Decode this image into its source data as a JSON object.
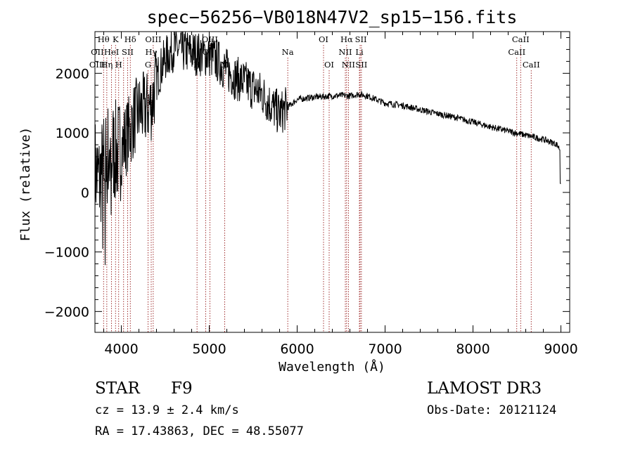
{
  "chart_data": {
    "type": "line",
    "title": "spec−56256−VB018N47V2_sp15−156.fits",
    "xlabel": "Wavelength (Å)",
    "ylabel": "Flux (relative)",
    "xlim": [
      3700,
      9100
    ],
    "ylim": [
      -2350,
      2700
    ],
    "xticks": [
      4000,
      5000,
      6000,
      7000,
      8000,
      9000
    ],
    "xtick_labels": [
      "4000",
      "5000",
      "6000",
      "7000",
      "8000",
      "9000"
    ],
    "yticks": [
      -2000,
      -1000,
      0,
      1000,
      2000
    ],
    "ytick_labels": [
      "−2000",
      "−1000",
      "0",
      "1000",
      "2000"
    ],
    "line_color": "#000000",
    "marker_color": "#8b0000",
    "spectrum_anchors": [
      [
        3700,
        400
      ],
      [
        3750,
        200
      ],
      [
        3800,
        500
      ],
      [
        3850,
        650
      ],
      [
        3900,
        700
      ],
      [
        3950,
        650
      ],
      [
        4000,
        750
      ],
      [
        4050,
        900
      ],
      [
        4100,
        1050
      ],
      [
        4150,
        1250
      ],
      [
        4200,
        1350
      ],
      [
        4300,
        1420
      ],
      [
        4350,
        1500
      ],
      [
        4400,
        1900
      ],
      [
        4500,
        2250
      ],
      [
        4600,
        2420
      ],
      [
        4700,
        2380
      ],
      [
        4800,
        2350
      ],
      [
        4900,
        2320
      ],
      [
        5000,
        2300
      ],
      [
        5100,
        2200
      ],
      [
        5200,
        2050
      ],
      [
        5300,
        1920
      ],
      [
        5400,
        1850
      ],
      [
        5500,
        1750
      ],
      [
        5600,
        1650
      ],
      [
        5700,
        1470
      ],
      [
        5800,
        1320
      ],
      [
        5850,
        1380
      ],
      [
        5900,
        1440
      ],
      [
        6000,
        1560
      ],
      [
        6100,
        1580
      ],
      [
        6200,
        1600
      ],
      [
        6300,
        1610
      ],
      [
        6400,
        1620
      ],
      [
        6500,
        1630
      ],
      [
        6600,
        1620
      ],
      [
        6700,
        1650
      ],
      [
        6800,
        1620
      ],
      [
        6900,
        1560
      ],
      [
        7000,
        1500
      ],
      [
        7200,
        1460
      ],
      [
        7400,
        1390
      ],
      [
        7600,
        1320
      ],
      [
        7800,
        1260
      ],
      [
        8000,
        1180
      ],
      [
        8200,
        1100
      ],
      [
        8400,
        1030
      ],
      [
        8600,
        960
      ],
      [
        8800,
        890
      ],
      [
        8950,
        810
      ],
      [
        9000,
        700
      ]
    ],
    "spectral_lines": [
      {
        "wave": 3798,
        "rows": [
          0
        ]
      },
      {
        "wave": 3835,
        "rows": [
          1,
          2
        ]
      },
      {
        "wave": 3889,
        "rows": [
          0,
          1,
          2
        ]
      },
      {
        "wave": 3934,
        "rows": [
          0
        ]
      },
      {
        "wave": 3970,
        "rows": [
          1,
          2
        ]
      },
      {
        "wave": 4026,
        "rows": [
          1
        ]
      },
      {
        "wave": 4072,
        "rows": [
          1
        ]
      },
      {
        "wave": 4102,
        "rows": [
          0
        ]
      },
      {
        "wave": 4304,
        "rows": [
          2
        ]
      },
      {
        "wave": 4340,
        "rows": [
          1
        ]
      },
      {
        "wave": 4363,
        "rows": [
          0
        ]
      },
      {
        "wave": 4861,
        "rows": [
          2
        ]
      },
      {
        "wave": 4959,
        "rows": [
          1
        ]
      },
      {
        "wave": 5007,
        "rows": [
          0
        ]
      },
      {
        "wave": 5176,
        "rows": [
          2
        ]
      },
      {
        "wave": 5893,
        "rows": [
          1
        ]
      },
      {
        "wave": 6300,
        "rows": [
          0
        ]
      },
      {
        "wave": 6364,
        "rows": [
          2
        ]
      },
      {
        "wave": 6548,
        "rows": [
          1,
          2
        ]
      },
      {
        "wave": 6563,
        "rows": [
          0
        ]
      },
      {
        "wave": 6583,
        "rows": [
          1,
          2
        ]
      },
      {
        "wave": 6708,
        "rows": [
          1
        ]
      },
      {
        "wave": 6716,
        "rows": [
          0,
          2
        ]
      },
      {
        "wave": 6731,
        "rows": [
          0,
          2
        ]
      },
      {
        "wave": 8498,
        "rows": [
          1
        ]
      },
      {
        "wave": 8542,
        "rows": [
          0
        ]
      },
      {
        "wave": 8662,
        "rows": [
          2
        ]
      }
    ],
    "line_labels": [
      {
        "text": "Hθ",
        "wave": 3798,
        "row": 0
      },
      {
        "text": "K",
        "wave": 3934,
        "row": 0
      },
      {
        "text": "Hδ",
        "wave": 4102,
        "row": 0
      },
      {
        "text": "OIII",
        "wave": 4363,
        "row": 0
      },
      {
        "text": "OIII",
        "wave": 5007,
        "row": 0
      },
      {
        "text": "OI",
        "wave": 6300,
        "row": 0
      },
      {
        "text": "Hα",
        "wave": 6563,
        "row": 0
      },
      {
        "text": "SII",
        "wave": 6725,
        "row": 0
      },
      {
        "text": "CaII",
        "wave": 8542,
        "row": 0
      },
      {
        "text": "OII",
        "wave": 3727,
        "row": 1
      },
      {
        "text": "HeI",
        "wave": 3889,
        "row": 1
      },
      {
        "text": "SII",
        "wave": 4072,
        "row": 1
      },
      {
        "text": "Hγ",
        "wave": 4340,
        "row": 1
      },
      {
        "text": "O",
        "wave": 4959,
        "row": 1
      },
      {
        "text": "Na",
        "wave": 5893,
        "row": 1
      },
      {
        "text": "NII",
        "wave": 6548,
        "row": 1
      },
      {
        "text": "Li",
        "wave": 6708,
        "row": 1
      },
      {
        "text": "CaII",
        "wave": 8498,
        "row": 1
      },
      {
        "text": "OIII",
        "wave": 3727,
        "row": 2
      },
      {
        "text": "Hη",
        "wave": 3835,
        "row": 2
      },
      {
        "text": "H",
        "wave": 3970,
        "row": 2
      },
      {
        "text": "G",
        "wave": 4304,
        "row": 2
      },
      {
        "text": "H",
        "wave": 4861,
        "row": 2
      },
      {
        "text": "M",
        "wave": 5176,
        "row": 2
      },
      {
        "text": "OI",
        "wave": 6364,
        "row": 2
      },
      {
        "text": "NII",
        "wave": 6583,
        "row": 2
      },
      {
        "text": "SII",
        "wave": 6731,
        "row": 2
      },
      {
        "text": "CaII",
        "wave": 8662,
        "row": 2
      }
    ]
  },
  "info": {
    "class_label": "STAR",
    "subclass": "F9",
    "survey": "LAMOST DR3",
    "cz": "cz = 13.9 ± 2.4 km/s",
    "obs_date": "Obs-Date: 20121124",
    "coords": "RA =  17.43863, DEC =  48.55077"
  }
}
